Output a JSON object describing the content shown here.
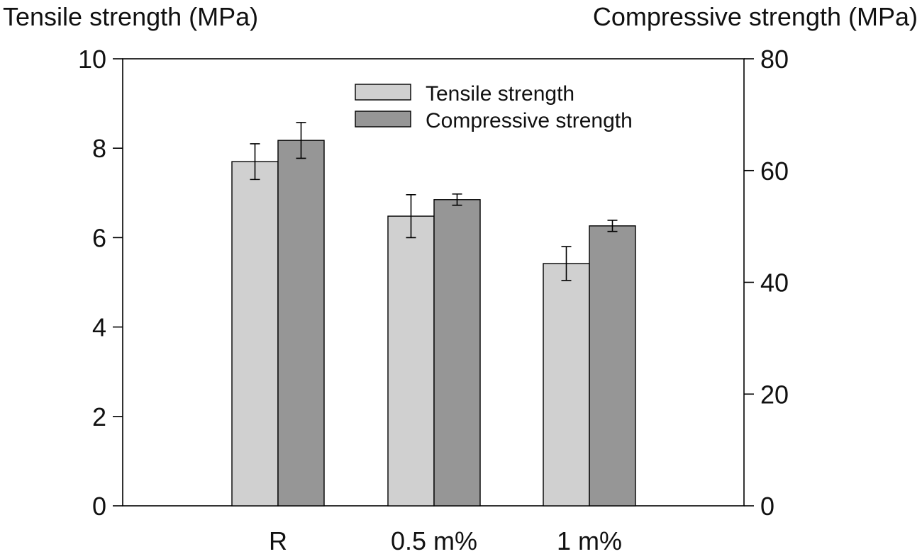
{
  "chart_data": {
    "type": "bar",
    "categories": [
      "R",
      "0.5 m%",
      "1 m%"
    ],
    "y_left": {
      "title": "Tensile strength (MPa)",
      "range": [
        0,
        10
      ],
      "ticks": [
        0,
        2,
        4,
        6,
        8,
        10
      ]
    },
    "y_right": {
      "title": "Compressive strength (MPa)",
      "range": [
        0,
        80
      ],
      "ticks": [
        0,
        20,
        40,
        60,
        80
      ]
    },
    "series": [
      {
        "name": "Tensile strength",
        "axis": "left",
        "color": "#d0d0d0",
        "values": [
          7.7,
          6.48,
          5.42
        ],
        "errors": [
          0.4,
          0.48,
          0.38
        ]
      },
      {
        "name": "Compressive strength",
        "axis": "right",
        "color": "#969696",
        "values": [
          65.4,
          54.8,
          50.1
        ],
        "errors": [
          3.2,
          1.0,
          1.0
        ]
      }
    ],
    "legend": "top-center",
    "grid": false
  }
}
